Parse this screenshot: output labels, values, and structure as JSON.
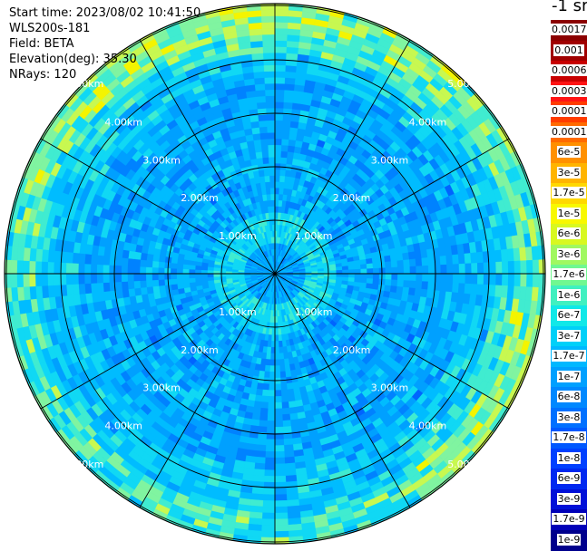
{
  "info": {
    "start_time": "Start time: 2023/08/02 10:41:50",
    "instrument": "WLS200s-181",
    "field": "Field: BETA",
    "elevation": "Elevation(deg): 35.30",
    "nrays": "NRays: 120"
  },
  "colorbar": {
    "unit": "-1 sr",
    "ticks": [
      "0.0017",
      "0.001",
      "0.0006",
      "0.0003",
      "0.00017",
      "0.0001",
      "6e-5",
      "3e-5",
      "1.7e-5",
      "1e-5",
      "6e-6",
      "3e-6",
      "1.7e-6",
      "1e-6",
      "6e-7",
      "3e-7",
      "1.7e-7",
      "1e-7",
      "6e-8",
      "3e-8",
      "1.7e-8",
      "1e-8",
      "6e-9",
      "3e-9",
      "1.7e-9",
      "1e-9"
    ],
    "colors": [
      "#8b0000",
      "#a00000",
      "#c80000",
      "#ff1414",
      "#ff3c00",
      "#ff6a00",
      "#ff9000",
      "#ffb400",
      "#ffd800",
      "#f8f800",
      "#d8f820",
      "#a0f860",
      "#70f890",
      "#40f0c0",
      "#10e8e8",
      "#00d0f8",
      "#00b8ff",
      "#00a0ff",
      "#0088ff",
      "#0070ff",
      "#0058ff",
      "#0040ff",
      "#0028f0",
      "#0010d8",
      "#0000b8",
      "#00008c"
    ]
  },
  "range_labels": [
    "1.00km",
    "2.00km",
    "3.00km",
    "4.00km",
    "5.00km"
  ]
}
